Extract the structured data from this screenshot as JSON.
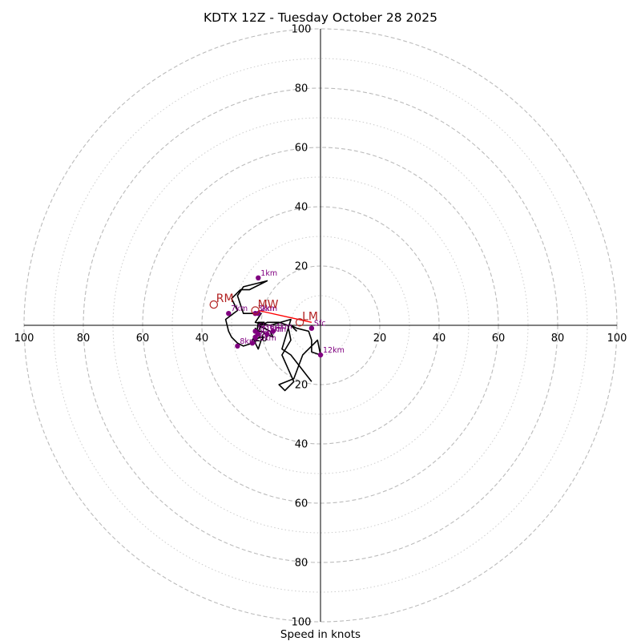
{
  "chart_data": {
    "type": "hodograph",
    "title": "KDTX 12Z - Tuesday October 28 2025",
    "xlabel": "Speed in knots",
    "units": "knots",
    "range": 100,
    "rings_dashed": [
      20,
      40,
      60,
      80,
      100
    ],
    "rings_dotted": [
      10,
      30,
      50,
      70,
      90
    ],
    "tick_values": [
      20,
      40,
      60,
      80,
      100
    ],
    "tick_labels": [
      "20",
      "40",
      "60",
      "80",
      "100"
    ],
    "colors": {
      "trace": "#000000",
      "height_points": "#800080",
      "motion": "#b22222",
      "shear_vector": "#ff0000",
      "rings": "#bbbbbb"
    },
    "trace": [
      [
        -3,
        -19
      ],
      [
        -10,
        -10
      ],
      [
        -13,
        -8
      ],
      [
        -10,
        2
      ],
      [
        -17,
        0
      ],
      [
        -22,
        1
      ],
      [
        -20,
        4
      ],
      [
        -26,
        4
      ],
      [
        -28,
        10
      ],
      [
        -26,
        13
      ],
      [
        -18,
        15
      ],
      [
        -24,
        12
      ],
      [
        -27,
        12
      ],
      [
        -30,
        9
      ],
      [
        -28,
        5
      ],
      [
        -32,
        2
      ],
      [
        -31,
        -2
      ],
      [
        -30,
        -4
      ],
      [
        -28,
        -6
      ],
      [
        -26,
        -7
      ],
      [
        -23,
        -6
      ],
      [
        -22,
        -5
      ],
      [
        -21,
        -3
      ],
      [
        -22,
        -1
      ],
      [
        -21,
        -2
      ],
      [
        -20,
        -2
      ],
      [
        -16,
        -4
      ],
      [
        -17,
        -2
      ],
      [
        -19,
        -1
      ],
      [
        -21,
        0
      ],
      [
        -19,
        1
      ],
      [
        -21,
        1
      ],
      [
        -22,
        -6
      ],
      [
        -21,
        -8
      ],
      [
        -20,
        -5
      ],
      [
        -19,
        -4
      ],
      [
        -20,
        -4
      ],
      [
        -23,
        -5
      ],
      [
        -21,
        -2
      ],
      [
        -20,
        0
      ],
      [
        -18,
        1
      ],
      [
        -14,
        1
      ],
      [
        -11,
        0
      ],
      [
        -10,
        -5
      ],
      [
        -13,
        -10
      ],
      [
        -9,
        -19
      ],
      [
        -12,
        -22
      ],
      [
        -14,
        -20
      ],
      [
        -9,
        -18
      ],
      [
        -6,
        -10
      ],
      [
        -1,
        -5
      ],
      [
        0,
        -10
      ],
      [
        -3,
        -9
      ],
      [
        -3,
        -5
      ],
      [
        -4,
        -2
      ],
      [
        -8,
        -1
      ],
      [
        -10,
        0
      ],
      [
        -8,
        -2
      ]
    ],
    "height_points": [
      {
        "label": "Sfc",
        "u": -3,
        "v": -1
      },
      {
        "label": "1km",
        "u": -21,
        "v": 16
      },
      {
        "label": "2km",
        "u": -21,
        "v": 4
      },
      {
        "label": "3km",
        "u": -22,
        "v": 4
      },
      {
        "label": "4km",
        "u": -16,
        "v": -2
      },
      {
        "label": "5km",
        "u": -18,
        "v": -3
      },
      {
        "label": "6km",
        "u": -22,
        "v": -2
      },
      {
        "label": "7km",
        "u": -31,
        "v": 4
      },
      {
        "label": "8km",
        "u": -28,
        "v": -7
      },
      {
        "label": "9km",
        "u": -22,
        "v": -4
      },
      {
        "label": "10km",
        "u": -23,
        "v": -6
      },
      {
        "label": "11km",
        "u": -21,
        "v": -3
      },
      {
        "label": "12km",
        "u": 0,
        "v": -10
      }
    ],
    "storm_motion": [
      {
        "label": "RM",
        "u": -36,
        "v": 7
      },
      {
        "label": "MW",
        "u": -22,
        "v": 5
      },
      {
        "label": "LM",
        "u": -7,
        "v": 1
      }
    ],
    "shear_vector": {
      "from": [
        -21,
        5
      ],
      "to": [
        -3,
        1
      ]
    }
  }
}
